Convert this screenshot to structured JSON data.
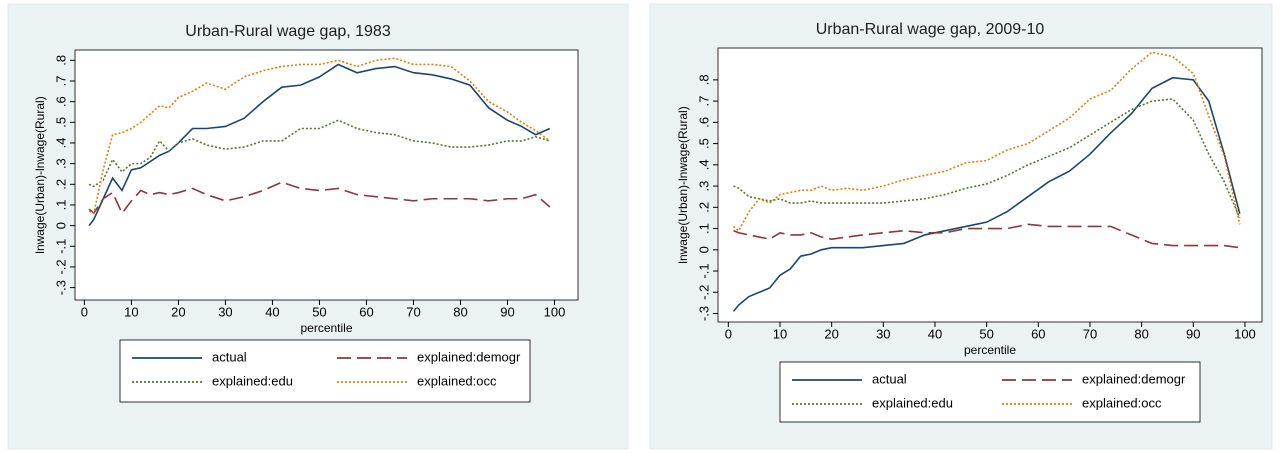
{
  "chart_data": [
    {
      "type": "line",
      "title": "Urban-Rural wage gap, 1983",
      "x_label": "percentile",
      "y_label": "lnwage(Urban)-lnwage(Rural)",
      "x": [
        1,
        2,
        4,
        6,
        8,
        10,
        12,
        14,
        16,
        18,
        20,
        23,
        26,
        30,
        34,
        38,
        42,
        46,
        50,
        54,
        58,
        62,
        66,
        70,
        74,
        78,
        82,
        86,
        90,
        93,
        96,
        99
      ],
      "series": [
        {
          "name": "actual",
          "color": "#1a476f",
          "dash": "solid",
          "values": [
            0.0,
            0.03,
            0.13,
            0.23,
            0.17,
            0.27,
            0.28,
            0.31,
            0.34,
            0.36,
            0.4,
            0.47,
            0.47,
            0.48,
            0.52,
            0.6,
            0.67,
            0.68,
            0.72,
            0.78,
            0.74,
            0.76,
            0.77,
            0.74,
            0.73,
            0.71,
            0.68,
            0.57,
            0.51,
            0.48,
            0.44,
            0.47
          ]
        },
        {
          "name": "explained:demogr",
          "color": "#90353b",
          "dash": "long",
          "values": [
            0.08,
            0.06,
            0.13,
            0.16,
            0.06,
            0.12,
            0.17,
            0.15,
            0.16,
            0.15,
            0.16,
            0.18,
            0.15,
            0.12,
            0.14,
            0.17,
            0.21,
            0.18,
            0.17,
            0.18,
            0.15,
            0.14,
            0.13,
            0.12,
            0.13,
            0.13,
            0.13,
            0.12,
            0.13,
            0.13,
            0.15,
            0.09
          ]
        },
        {
          "name": "explained:edu",
          "color": "#55752f",
          "dash": "dotted",
          "values": [
            0.2,
            0.19,
            0.22,
            0.32,
            0.26,
            0.3,
            0.3,
            0.33,
            0.41,
            0.36,
            0.4,
            0.42,
            0.39,
            0.37,
            0.38,
            0.41,
            0.41,
            0.47,
            0.47,
            0.51,
            0.47,
            0.45,
            0.44,
            0.41,
            0.4,
            0.38,
            0.38,
            0.39,
            0.41,
            0.41,
            0.43,
            0.41
          ]
        },
        {
          "name": "explained:occ",
          "color": "#e37e00",
          "dash": "dotted",
          "values": [
            0.07,
            0.06,
            0.27,
            0.44,
            0.45,
            0.47,
            0.5,
            0.54,
            0.58,
            0.57,
            0.62,
            0.65,
            0.69,
            0.66,
            0.72,
            0.75,
            0.77,
            0.78,
            0.78,
            0.8,
            0.77,
            0.8,
            0.81,
            0.78,
            0.78,
            0.77,
            0.7,
            0.6,
            0.55,
            0.5,
            0.46,
            0.41
          ]
        }
      ],
      "xlim": [
        -2,
        105
      ],
      "ylim": [
        -0.36,
        0.85
      ],
      "xticks": [
        0,
        10,
        20,
        30,
        40,
        50,
        60,
        70,
        80,
        90,
        100
      ],
      "yticks": [
        {
          "value": -0.3,
          "label": "-.3"
        },
        {
          "value": -0.2,
          "label": "-.2"
        },
        {
          "value": -0.1,
          "label": "-.1"
        },
        0,
        {
          "value": 0.1,
          "label": ".1"
        },
        {
          "value": 0.2,
          "label": ".2"
        },
        {
          "value": 0.3,
          "label": ".3"
        },
        {
          "value": 0.4,
          "label": ".4"
        },
        {
          "value": 0.5,
          "label": ".5"
        },
        {
          "value": 0.6,
          "label": ".6"
        },
        {
          "value": 0.7,
          "label": ".7"
        },
        {
          "value": 0.8,
          "label": ".8"
        }
      ],
      "grid": false,
      "legend": "bottom"
    },
    {
      "type": "line",
      "title": "Urban-Rural wage gap, 2009-10",
      "x_label": "percentile",
      "y_label": "lnwage(Urban)-lnwage(Rural)",
      "x": [
        1,
        2,
        4,
        6,
        8,
        10,
        12,
        14,
        16,
        18,
        20,
        23,
        26,
        30,
        34,
        38,
        42,
        46,
        50,
        54,
        58,
        62,
        66,
        70,
        74,
        78,
        82,
        86,
        90,
        93,
        96,
        99
      ],
      "series": [
        {
          "name": "actual",
          "color": "#1a476f",
          "dash": "solid",
          "values": [
            -0.29,
            -0.26,
            -0.22,
            -0.2,
            -0.18,
            -0.12,
            -0.09,
            -0.03,
            -0.02,
            0.0,
            0.01,
            0.01,
            0.01,
            0.02,
            0.03,
            0.07,
            0.09,
            0.11,
            0.13,
            0.18,
            0.25,
            0.32,
            0.37,
            0.45,
            0.55,
            0.64,
            0.76,
            0.81,
            0.8,
            0.7,
            0.45,
            0.17
          ]
        },
        {
          "name": "explained:demogr",
          "color": "#90353b",
          "dash": "long",
          "values": [
            0.09,
            0.08,
            0.07,
            0.06,
            0.05,
            0.08,
            0.07,
            0.07,
            0.08,
            0.06,
            0.05,
            0.06,
            0.07,
            0.08,
            0.09,
            0.08,
            0.08,
            0.1,
            0.1,
            0.1,
            0.12,
            0.11,
            0.11,
            0.11,
            0.11,
            0.07,
            0.03,
            0.02,
            0.02,
            0.02,
            0.02,
            0.01
          ]
        },
        {
          "name": "explained:edu",
          "color": "#55752f",
          "dash": "dotted",
          "values": [
            0.3,
            0.29,
            0.25,
            0.24,
            0.23,
            0.24,
            0.22,
            0.22,
            0.23,
            0.22,
            0.22,
            0.22,
            0.22,
            0.22,
            0.23,
            0.24,
            0.26,
            0.29,
            0.31,
            0.35,
            0.4,
            0.44,
            0.48,
            0.54,
            0.6,
            0.66,
            0.7,
            0.71,
            0.61,
            0.45,
            0.32,
            0.15
          ]
        },
        {
          "name": "explained:occ",
          "color": "#e37e00",
          "dash": "dotted",
          "values": [
            0.11,
            0.09,
            0.18,
            0.24,
            0.22,
            0.26,
            0.27,
            0.28,
            0.28,
            0.3,
            0.28,
            0.29,
            0.28,
            0.3,
            0.33,
            0.35,
            0.37,
            0.41,
            0.42,
            0.47,
            0.5,
            0.56,
            0.62,
            0.71,
            0.75,
            0.85,
            0.93,
            0.91,
            0.83,
            0.63,
            0.44,
            0.12
          ]
        }
      ],
      "xlim": [
        -2,
        103.3
      ],
      "ylim": [
        -0.34,
        0.95
      ],
      "xticks": [
        0,
        10,
        20,
        30,
        40,
        50,
        60,
        70,
        80,
        90,
        100
      ],
      "yticks": [
        {
          "value": -0.3,
          "label": "-.3"
        },
        {
          "value": -0.2,
          "label": "-.2"
        },
        {
          "value": -0.1,
          "label": "-.1"
        },
        0,
        {
          "value": 0.1,
          "label": ".1"
        },
        {
          "value": 0.2,
          "label": ".2"
        },
        {
          "value": 0.3,
          "label": ".3"
        },
        {
          "value": 0.4,
          "label": ".4"
        },
        {
          "value": 0.5,
          "label": ".5"
        },
        {
          "value": 0.6,
          "label": ".6"
        },
        {
          "value": 0.7,
          "label": ".7"
        },
        {
          "value": 0.8,
          "label": ".8"
        }
      ],
      "grid": false,
      "legend": "bottom"
    }
  ]
}
